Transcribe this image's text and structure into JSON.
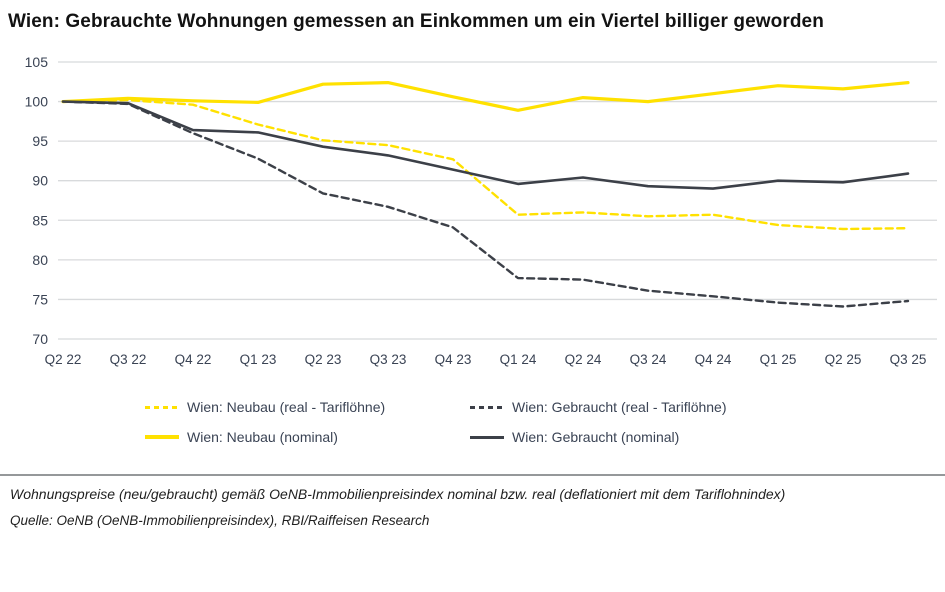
{
  "title": "Wien: Gebrauchte Wohnungen gemessen an Einkommen um ein Viertel billiger geworden",
  "chart_data": {
    "type": "line",
    "title": "Wien: Gebrauchte Wohnungen gemessen an Einkommen um ein Viertel billiger geworden",
    "categories": [
      "Q2 22",
      "Q3 22",
      "Q4 22",
      "Q1 23",
      "Q2 23",
      "Q3 23",
      "Q4 23",
      "Q1 24",
      "Q2 24",
      "Q3 24",
      "Q4 24",
      "Q1 25",
      "Q2 25",
      "Q3 25"
    ],
    "series": [
      {
        "name": "Wien: Neubau (real - Tariflöhne)",
        "color": "#FFE100",
        "style": "dashed",
        "values": [
          100,
          100.2,
          99.6,
          97.1,
          95.1,
          94.5,
          92.7,
          85.7,
          86.0,
          85.5,
          85.7,
          84.4,
          83.9,
          84.0
        ]
      },
      {
        "name": "Wien: Gebraucht (real - Tariflöhne)",
        "color": "#3C4048",
        "style": "dashed",
        "values": [
          100,
          99.7,
          96.0,
          92.8,
          88.4,
          86.7,
          84.1,
          77.7,
          77.5,
          76.1,
          75.4,
          74.6,
          74.1,
          74.8
        ]
      },
      {
        "name": "Wien: Neubau (nominal)",
        "color": "#FFE100",
        "style": "solid",
        "values": [
          100,
          100.4,
          100.1,
          99.9,
          102.2,
          102.4,
          100.6,
          98.9,
          100.5,
          100.0,
          101.0,
          102.0,
          101.6,
          102.4
        ]
      },
      {
        "name": "Wien: Gebraucht (nominal)",
        "color": "#3C4048",
        "style": "solid",
        "values": [
          100,
          99.8,
          96.4,
          96.1,
          94.3,
          93.2,
          91.4,
          89.6,
          90.4,
          89.3,
          89.0,
          90.0,
          89.8,
          90.9
        ]
      }
    ],
    "xlabel": "",
    "ylabel": "",
    "ylim": [
      70,
      105
    ],
    "y_ticks": [
      105,
      100,
      95,
      90,
      85,
      80,
      75,
      70
    ],
    "grid": "horizontal",
    "legend_position": "bottom"
  },
  "footnote": "Wohnungspreise (neu/gebraucht) gemäß OeNB-Immobilienpreisindex nominal bzw. real (deflationiert mit dem Tariflohnindex)",
  "source": "Quelle: OeNB (OeNB-Immobilienpreisindex), RBI/Raiffeisen Research",
  "colors": {
    "yellow": "#FFE100",
    "dark": "#3C4048",
    "grid": "#D8DADC",
    "axis_text": "#3A4354",
    "divider": "#95989A"
  }
}
